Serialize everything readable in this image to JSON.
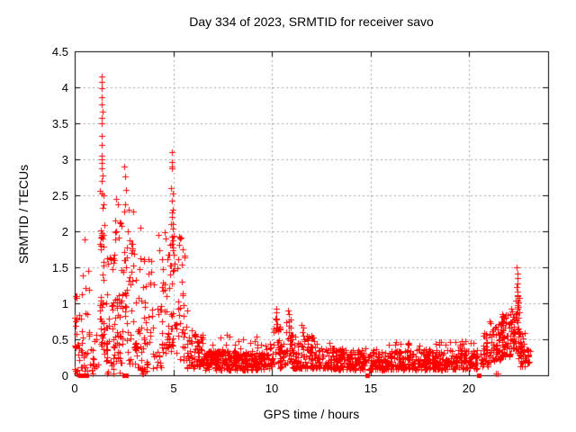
{
  "chart_data": {
    "type": "scatter",
    "title": "Day 334 of 2023, SRMTID for receiver savo",
    "xlabel": "GPS time / hours",
    "ylabel": "SRMTID / TECUs",
    "xlim": [
      0,
      24
    ],
    "ylim": [
      0,
      4.5
    ],
    "xticks": [
      0,
      5,
      10,
      15,
      20
    ],
    "yticks": [
      0,
      0.5,
      1,
      1.5,
      2,
      2.5,
      3,
      3.5,
      4,
      4.5
    ],
    "ytick_labels": [
      "0",
      "0.5",
      "1",
      "1.5",
      "2",
      "2.5",
      "3",
      "3.5",
      "4",
      "4.5"
    ],
    "grid": "dotted, at every major tick",
    "legend": "none",
    "marker": "plus",
    "point_color": "#ff0000",
    "grid_color": "#a6a6a6",
    "axis_color": "#000000",
    "background_color": "#ffffff",
    "notable_points": [
      [
        1.37,
        4.15
      ],
      [
        1.39,
        4.08
      ],
      [
        1.38,
        3.99
      ],
      [
        1.36,
        3.86
      ],
      [
        1.38,
        3.76
      ],
      [
        1.4,
        3.66
      ],
      [
        1.37,
        3.57
      ],
      [
        1.39,
        3.5
      ],
      [
        1.36,
        3.32
      ],
      [
        1.38,
        3.2
      ],
      [
        1.37,
        3.05
      ],
      [
        1.39,
        3.0
      ],
      [
        1.38,
        2.95
      ],
      [
        1.36,
        2.88
      ],
      [
        1.4,
        2.78
      ],
      [
        1.38,
        2.7
      ],
      [
        1.37,
        2.52
      ],
      [
        1.41,
        2.32
      ],
      [
        1.35,
        1.95
      ],
      [
        1.62,
        1.62
      ],
      [
        1.68,
        1.55
      ],
      [
        2.12,
        2.45
      ],
      [
        2.18,
        2.38
      ],
      [
        2.52,
        2.9
      ],
      [
        2.56,
        2.76
      ],
      [
        2.62,
        2.58
      ],
      [
        2.72,
        2.3
      ],
      [
        2.95,
        2.28
      ],
      [
        3.32,
        2.05
      ],
      [
        4.25,
        1.95
      ],
      [
        4.92,
        3.1
      ],
      [
        4.94,
        2.96
      ],
      [
        4.92,
        2.9
      ],
      [
        4.95,
        2.88
      ],
      [
        4.9,
        2.6
      ],
      [
        4.96,
        2.52
      ],
      [
        4.93,
        2.42
      ],
      [
        4.97,
        2.3
      ],
      [
        4.91,
        2.2
      ],
      [
        5.35,
        1.9
      ],
      [
        7.72,
        0.56
      ],
      [
        8.52,
        0.5
      ],
      [
        10.2,
        0.92
      ],
      [
        10.24,
        0.88
      ],
      [
        10.82,
        0.9
      ],
      [
        10.86,
        0.85
      ],
      [
        11.52,
        0.7
      ],
      [
        11.58,
        0.66
      ],
      [
        12.9,
        0.45
      ],
      [
        16.3,
        0.46
      ],
      [
        18.3,
        0.44
      ],
      [
        21.02,
        0.75
      ],
      [
        21.06,
        0.72
      ],
      [
        22.42,
        1.5
      ],
      [
        22.44,
        1.41
      ],
      [
        22.43,
        1.35
      ],
      [
        22.45,
        1.28
      ],
      [
        22.42,
        1.22
      ],
      [
        22.46,
        1.16
      ],
      [
        22.44,
        1.1
      ],
      [
        22.47,
        1.04
      ],
      [
        22.43,
        0.98
      ],
      [
        22.45,
        0.92
      ]
    ],
    "zero_square_markers": [
      [
        0.28,
        0
      ],
      [
        0.38,
        0
      ],
      [
        0.5,
        0
      ],
      [
        0.58,
        0
      ],
      [
        2.52,
        0
      ],
      [
        2.62,
        0
      ],
      [
        14.82,
        0
      ],
      [
        20.5,
        0
      ]
    ],
    "near_zero_plus_markers": [
      [
        0.08,
        0.02
      ],
      [
        0.5,
        0.03
      ],
      [
        0.9,
        0.02
      ],
      [
        1.62,
        0.03
      ],
      [
        1.95,
        0.02
      ],
      [
        2.3,
        0.04
      ],
      [
        3.42,
        0.03
      ],
      [
        3.58,
        0.05
      ],
      [
        21.35,
        0.02
      ],
      [
        21.45,
        0.03
      ]
    ],
    "density_segments": [
      {
        "x0": 0.0,
        "x1": 0.12,
        "n": 14,
        "y_min": 0.05,
        "y_max": 1.35,
        "bias": 1.0
      },
      {
        "x0": 0.12,
        "x1": 0.65,
        "n": 26,
        "y_min": 0.02,
        "y_max": 1.0,
        "bias": 2.2
      },
      {
        "x0": 0.35,
        "x1": 0.75,
        "n": 6,
        "y_min": 1.1,
        "y_max": 1.95,
        "bias": 1.0
      },
      {
        "x0": 0.65,
        "x1": 1.2,
        "n": 18,
        "y_min": 0.05,
        "y_max": 0.9,
        "bias": 1.8
      },
      {
        "x0": 1.25,
        "x1": 1.5,
        "n": 42,
        "y_min": 0.3,
        "y_max": 2.6,
        "bias": 1.3
      },
      {
        "x0": 1.5,
        "x1": 1.95,
        "n": 30,
        "y_min": 0.05,
        "y_max": 1.65,
        "bias": 1.6
      },
      {
        "x0": 1.95,
        "x1": 2.45,
        "n": 55,
        "y_min": 0.15,
        "y_max": 2.2,
        "bias": 1.4
      },
      {
        "x0": 2.45,
        "x1": 2.7,
        "n": 22,
        "y_min": 0.3,
        "y_max": 2.4,
        "bias": 1.2
      },
      {
        "x0": 2.7,
        "x1": 3.15,
        "n": 32,
        "y_min": 0.15,
        "y_max": 2.0,
        "bias": 1.5
      },
      {
        "x0": 3.15,
        "x1": 4.4,
        "n": 65,
        "y_min": 0.1,
        "y_max": 1.75,
        "bias": 1.7
      },
      {
        "x0": 3.3,
        "x1": 3.65,
        "n": 8,
        "y_min": 0.02,
        "y_max": 0.12,
        "bias": 1.0
      },
      {
        "x0": 4.4,
        "x1": 4.88,
        "n": 42,
        "y_min": 0.3,
        "y_max": 2.1,
        "bias": 1.4
      },
      {
        "x0": 4.88,
        "x1": 5.06,
        "n": 26,
        "y_min": 0.4,
        "y_max": 2.35,
        "bias": 1.2
      },
      {
        "x0": 5.06,
        "x1": 5.62,
        "n": 34,
        "y_min": 0.2,
        "y_max": 1.95,
        "bias": 1.5
      },
      {
        "x0": 5.62,
        "x1": 6.05,
        "n": 26,
        "y_min": 0.1,
        "y_max": 0.95,
        "bias": 1.6
      },
      {
        "x0": 6.05,
        "x1": 6.5,
        "n": 42,
        "y_min": 0.12,
        "y_max": 0.58,
        "bias": 1.3
      },
      {
        "x0": 6.5,
        "x1": 9.6,
        "n": 290,
        "y_min": 0.07,
        "y_max": 0.34,
        "bias": 1.1
      },
      {
        "x0": 6.9,
        "x1": 9.5,
        "n": 14,
        "y_min": 0.35,
        "y_max": 0.55,
        "bias": 1.0
      },
      {
        "x0": 9.6,
        "x1": 10.05,
        "n": 40,
        "y_min": 0.1,
        "y_max": 0.45,
        "bias": 1.3
      },
      {
        "x0": 10.05,
        "x1": 10.4,
        "n": 30,
        "y_min": 0.15,
        "y_max": 0.8,
        "bias": 1.4
      },
      {
        "x0": 10.4,
        "x1": 10.65,
        "n": 22,
        "y_min": 0.1,
        "y_max": 0.5,
        "bias": 1.3
      },
      {
        "x0": 10.65,
        "x1": 11.0,
        "n": 30,
        "y_min": 0.15,
        "y_max": 0.82,
        "bias": 1.4
      },
      {
        "x0": 11.0,
        "x1": 12.3,
        "n": 110,
        "y_min": 0.1,
        "y_max": 0.6,
        "bias": 1.8
      },
      {
        "x0": 12.3,
        "x1": 14.75,
        "n": 200,
        "y_min": 0.08,
        "y_max": 0.38,
        "bias": 1.4
      },
      {
        "x0": 14.87,
        "x1": 20.45,
        "n": 430,
        "y_min": 0.08,
        "y_max": 0.36,
        "bias": 1.4
      },
      {
        "x0": 15.5,
        "x1": 20.3,
        "n": 25,
        "y_min": 0.36,
        "y_max": 0.48,
        "bias": 1.0
      },
      {
        "x0": 20.55,
        "x1": 21.1,
        "n": 45,
        "y_min": 0.12,
        "y_max": 0.6,
        "bias": 1.5
      },
      {
        "x0": 21.1,
        "x1": 21.6,
        "n": 45,
        "y_min": 0.2,
        "y_max": 0.72,
        "bias": 1.4
      },
      {
        "x0": 21.6,
        "x1": 22.05,
        "n": 55,
        "y_min": 0.25,
        "y_max": 0.85,
        "bias": 1.3
      },
      {
        "x0": 22.05,
        "x1": 22.3,
        "n": 30,
        "y_min": 0.3,
        "y_max": 0.95,
        "bias": 1.2
      },
      {
        "x0": 22.32,
        "x1": 22.55,
        "n": 34,
        "y_min": 0.15,
        "y_max": 1.3,
        "bias": 1.0
      },
      {
        "x0": 22.55,
        "x1": 22.85,
        "n": 30,
        "y_min": 0.12,
        "y_max": 0.6,
        "bias": 1.4
      },
      {
        "x0": 22.85,
        "x1": 23.1,
        "n": 12,
        "y_min": 0.15,
        "y_max": 0.4,
        "bias": 1.2
      }
    ]
  }
}
